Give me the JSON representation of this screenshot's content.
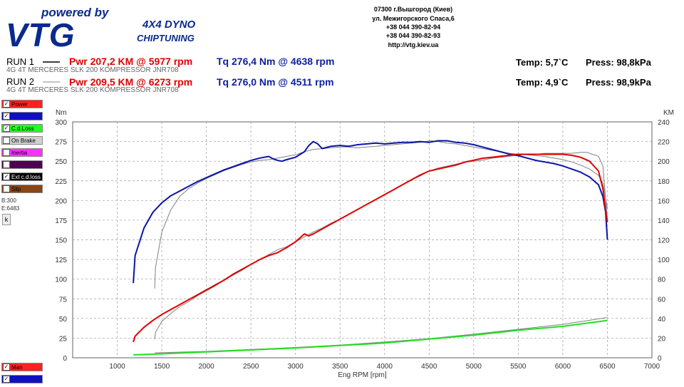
{
  "logo": {
    "powered": "powered by",
    "brand": "VTG",
    "dyno": "4X4 DYNO",
    "tuning": "CHIPTUNING"
  },
  "address": [
    "07300 г.Вышгород (Киев)",
    "ул. Межигорского Спаса,6",
    "+38 044 390-82-94",
    "+38 044 390-82-93",
    "http://vtg.kiev.ua"
  ],
  "runs": [
    {
      "label": "RUN 1",
      "vehicle": "4G 4T MERCERES SLK 200 KOMPRESSOR JNR708",
      "pwr": "Pwr  207,2 KM @ 5977 rpm",
      "tq": "Tq 276,4 Nm @ 4638 rpm",
      "temp": "Temp: 5,7`C",
      "press": "Press: 98,8kPa"
    },
    {
      "label": "RUN 2",
      "vehicle": "4G 4T MERCERES SLK 200 KOMPRESSOR JNR708",
      "pwr": "Pwr  209,5 KM @ 6273 rpm",
      "tq": "Tq 276,0 Nm @ 4511 rpm",
      "temp": "Temp: 4,9`C",
      "press": "Press: 98,9kPa"
    }
  ],
  "sidebar": {
    "checkboxes": [
      {
        "label": "Power",
        "checked": true,
        "bg": "#ff2020",
        "fg": "#000000"
      },
      {
        "label": "",
        "checked": true,
        "bg": "#1010c0",
        "fg": "#ffffff"
      },
      {
        "label": "C.d.Loss",
        "checked": true,
        "bg": "#20ff20",
        "fg": "#000000"
      },
      {
        "label": "On Brake",
        "checked": false,
        "bg": "#d0d0d0",
        "fg": "#000000"
      },
      {
        "label": "Inertia",
        "checked": false,
        "bg": "#ff30ff",
        "fg": "#000000"
      },
      {
        "label": "",
        "checked": false,
        "bg": "#500050",
        "fg": "#ffffff"
      },
      {
        "label": "Ext c.d.loss",
        "checked": true,
        "bg": "#000000",
        "fg": "#ffffff"
      },
      {
        "label": "Slip",
        "checked": false,
        "bg": "#8b4513",
        "fg": "#000000"
      }
    ],
    "b_value": "B:300",
    "e_value": "E:6483",
    "k_button": "k",
    "bottom_checkboxes": [
      {
        "label": "Man",
        "checked": true,
        "bg": "#ff2020",
        "fg": "#000000"
      },
      {
        "label": "",
        "checked": true,
        "bg": "#1010c0",
        "fg": "#ffffff"
      }
    ]
  },
  "chart_data": {
    "type": "line",
    "title": "",
    "xlabel": "Eng RPM [rpm]",
    "ylabel_left": "Nm",
    "ylabel_right": "KM",
    "xlim": [
      500,
      7000
    ],
    "xticks": [
      1000,
      1500,
      2000,
      2500,
      3000,
      3500,
      4000,
      4500,
      5000,
      5500,
      6000,
      6500,
      7000
    ],
    "ylim_left": [
      0,
      300
    ],
    "yticks_left": [
      0,
      25,
      50,
      75,
      100,
      125,
      150,
      175,
      200,
      225,
      250,
      275,
      300
    ],
    "ylim_right": [
      0,
      240
    ],
    "yticks_right": [
      0,
      20,
      40,
      60,
      80,
      100,
      120,
      140,
      160,
      180,
      200,
      220,
      240
    ],
    "grid": true,
    "series": [
      {
        "axis": "left",
        "color": "#0a14a8",
        "width": 2,
        "x": [
          1180,
          1200,
          1300,
          1400,
          1500,
          1600,
          1700,
          1800,
          1900,
          2000,
          2100,
          2200,
          2300,
          2400,
          2500,
          2600,
          2700,
          2750,
          2800,
          2850,
          2900,
          3000,
          3100,
          3150,
          3200,
          3250,
          3300,
          3400,
          3500,
          3600,
          3700,
          3800,
          3900,
          4000,
          4100,
          4200,
          4300,
          4400,
          4500,
          4600,
          4638,
          4700,
          4800,
          4900,
          5000,
          5100,
          5200,
          5300,
          5400,
          5500,
          5600,
          5700,
          5800,
          5900,
          6000,
          6100,
          6200,
          6300,
          6400,
          6450,
          6480,
          6500
        ],
        "y": [
          95,
          130,
          165,
          185,
          197,
          206,
          212,
          218,
          224,
          229,
          234,
          239,
          243,
          247,
          251,
          254,
          256,
          253,
          251,
          250,
          252,
          255,
          262,
          270,
          275,
          272,
          266,
          269,
          270,
          269,
          271,
          272,
          273,
          272,
          273,
          274,
          274,
          275,
          274,
          276,
          276,
          276,
          274,
          273,
          271,
          268,
          265,
          262,
          259,
          257,
          254,
          251,
          249,
          247,
          244,
          240,
          236,
          230,
          220,
          205,
          185,
          150
        ]
      },
      {
        "axis": "left",
        "color": "#808080",
        "width": 1,
        "x": [
          1420,
          1430,
          1500,
          1600,
          1700,
          1800,
          1900,
          2000,
          2100,
          2200,
          2300,
          2400,
          2500,
          2600,
          2700,
          2800,
          2900,
          3000,
          3100,
          3200,
          3300,
          3400,
          3500,
          3600,
          3700,
          3800,
          3900,
          4000,
          4100,
          4200,
          4300,
          4400,
          4511,
          4600,
          4700,
          4800,
          4900,
          5000,
          5100,
          5200,
          5300,
          5400,
          5500,
          5600,
          5700,
          5800,
          5900,
          6000,
          6100,
          6200,
          6300,
          6400,
          6450,
          6500
        ],
        "y": [
          88,
          115,
          160,
          188,
          205,
          215,
          222,
          228,
          233,
          238,
          242,
          246,
          249,
          251,
          252,
          254,
          256,
          258,
          262,
          265,
          266,
          267,
          268,
          268,
          267,
          268,
          269,
          270,
          271,
          272,
          273,
          274,
          276,
          275,
          273,
          272,
          270,
          268,
          266,
          264,
          262,
          260,
          259,
          258,
          257,
          256,
          254,
          252,
          249,
          245,
          240,
          232,
          222,
          190
        ]
      },
      {
        "axis": "right",
        "color": "#e00000",
        "width": 2,
        "x": [
          1180,
          1200,
          1300,
          1400,
          1500,
          1600,
          1700,
          1800,
          1900,
          2000,
          2100,
          2200,
          2300,
          2400,
          2500,
          2600,
          2700,
          2800,
          2900,
          3000,
          3100,
          3150,
          3200,
          3300,
          3400,
          3500,
          3600,
          3700,
          3800,
          3900,
          4000,
          4100,
          4200,
          4300,
          4400,
          4500,
          4600,
          4700,
          4800,
          4900,
          5000,
          5100,
          5200,
          5300,
          5400,
          5500,
          5600,
          5700,
          5800,
          5900,
          5977,
          6000,
          6100,
          6200,
          6300,
          6400,
          6450,
          6480,
          6500
        ],
        "y": [
          16,
          22,
          31,
          38,
          44,
          49,
          54,
          59,
          64,
          69,
          74,
          79,
          85,
          90,
          95,
          100,
          104,
          107,
          112,
          118,
          126,
          124,
          126,
          131,
          136,
          141,
          146,
          151,
          156,
          161,
          166,
          171,
          176,
          181,
          186,
          190,
          192,
          194,
          196,
          199,
          201,
          203,
          204,
          205,
          206,
          207,
          207,
          207,
          207,
          207,
          207,
          207,
          206,
          204,
          200,
          190,
          172,
          150,
          138
        ]
      },
      {
        "axis": "right",
        "color": "#808080",
        "width": 1,
        "x": [
          1420,
          1430,
          1500,
          1600,
          1700,
          1800,
          1900,
          2000,
          2100,
          2200,
          2300,
          2400,
          2500,
          2600,
          2700,
          2800,
          2900,
          3000,
          3100,
          3200,
          3300,
          3400,
          3500,
          3600,
          3700,
          3800,
          3900,
          4000,
          4100,
          4200,
          4300,
          4400,
          4500,
          4600,
          4700,
          4800,
          4900,
          5000,
          5100,
          5200,
          5300,
          5400,
          5500,
          5600,
          5700,
          5800,
          5900,
          6000,
          6100,
          6200,
          6273,
          6300,
          6400,
          6450,
          6500
        ],
        "y": [
          19,
          26,
          37,
          45,
          52,
          57,
          63,
          68,
          73,
          79,
          84,
          89,
          95,
          100,
          105,
          110,
          113,
          118,
          123,
          128,
          132,
          137,
          141,
          146,
          151,
          156,
          161,
          166,
          171,
          176,
          181,
          185,
          190,
          193,
          195,
          197,
          199,
          200,
          201,
          203,
          204,
          205,
          206,
          207,
          207,
          208,
          208,
          208,
          208,
          209,
          209,
          208,
          205,
          195,
          140
        ]
      },
      {
        "axis": "right",
        "color": "#20e020",
        "width": 2,
        "x": [
          1180,
          1500,
          2000,
          2500,
          3000,
          3500,
          4000,
          4500,
          5000,
          5500,
          6000,
          6500
        ],
        "y": [
          3,
          4,
          6,
          8,
          10,
          12.5,
          15,
          19,
          23,
          28,
          32,
          38
        ]
      },
      {
        "axis": "right",
        "color": "#808080",
        "width": 1,
        "x": [
          1420,
          2000,
          2500,
          3000,
          3500,
          4000,
          4500,
          5000,
          5500,
          6000,
          6500
        ],
        "y": [
          5,
          6.5,
          8.5,
          10.5,
          13,
          16,
          19.5,
          24,
          29,
          34,
          41
        ]
      }
    ]
  }
}
